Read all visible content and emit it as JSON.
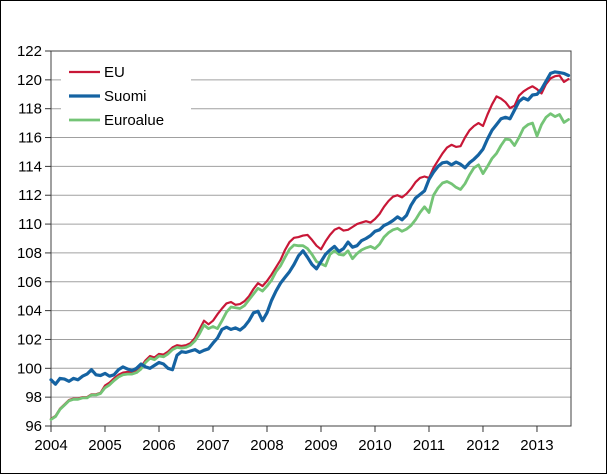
{
  "figure": {
    "background": "#ffffff",
    "border_color": "#000000",
    "gridline_color": "#a0a0a0",
    "frame_color": "#404040",
    "tick_color": "#333333"
  },
  "legend": {
    "position": "top-left-inside",
    "items": [
      {
        "label": "EU"
      },
      {
        "label": "Suomi"
      },
      {
        "label": "Euroalue"
      }
    ]
  },
  "chart_data": {
    "type": "line",
    "title": "",
    "xlabel": "",
    "ylabel": "",
    "x_unit": "month",
    "x_start_year": 2004,
    "x_tick_labels": [
      "2004",
      "2005",
      "2006",
      "2007",
      "2008",
      "2009",
      "2010",
      "2011",
      "2012",
      "2013"
    ],
    "y_ticks": [
      96,
      98,
      100,
      102,
      104,
      106,
      108,
      110,
      112,
      114,
      116,
      118,
      120,
      122
    ],
    "ylim": [
      96,
      122
    ],
    "grid": "horizontal",
    "legend_position": "upper left",
    "series": [
      {
        "name": "EU",
        "color": "#c81737",
        "width": 2.2,
        "values": [
          96.5,
          96.7,
          97.2,
          97.5,
          97.8,
          97.9,
          97.9,
          98.0,
          98.0,
          98.2,
          98.2,
          98.3,
          98.8,
          99.0,
          99.3,
          99.55,
          99.7,
          99.75,
          99.75,
          99.85,
          100.1,
          100.55,
          100.85,
          100.75,
          101.0,
          100.95,
          101.15,
          101.45,
          101.6,
          101.55,
          101.6,
          101.75,
          102.1,
          102.7,
          103.3,
          103.05,
          103.3,
          103.75,
          104.15,
          104.5,
          104.6,
          104.4,
          104.45,
          104.65,
          105.0,
          105.5,
          105.9,
          105.7,
          106.05,
          106.5,
          107.0,
          107.5,
          108.2,
          108.75,
          109.05,
          109.1,
          109.2,
          109.25,
          108.9,
          108.5,
          108.25,
          108.8,
          109.25,
          109.6,
          109.75,
          109.55,
          109.6,
          109.8,
          110.0,
          110.1,
          110.2,
          110.1,
          110.35,
          110.7,
          111.2,
          111.6,
          111.9,
          112.0,
          111.85,
          112.1,
          112.45,
          112.9,
          113.2,
          113.3,
          113.2,
          113.9,
          114.4,
          114.9,
          115.3,
          115.5,
          115.35,
          115.4,
          116.0,
          116.5,
          116.8,
          117.0,
          116.8,
          117.6,
          118.3,
          118.85,
          118.7,
          118.45,
          118.05,
          118.2,
          118.9,
          119.2,
          119.4,
          119.55,
          119.35,
          119.05,
          119.7,
          120.1,
          120.25,
          120.3,
          119.85,
          120.05
        ]
      },
      {
        "name": "Suomi",
        "color": "#1563a2",
        "width": 3.2,
        "values": [
          99.2,
          98.9,
          99.3,
          99.25,
          99.1,
          99.3,
          99.2,
          99.45,
          99.6,
          99.9,
          99.55,
          99.5,
          99.65,
          99.45,
          99.55,
          99.9,
          100.1,
          99.95,
          99.85,
          100.0,
          100.3,
          100.1,
          100.0,
          100.2,
          100.4,
          100.3,
          100.0,
          99.9,
          100.9,
          101.15,
          101.1,
          101.2,
          101.3,
          101.1,
          101.25,
          101.35,
          101.75,
          102.1,
          102.7,
          102.85,
          102.7,
          102.8,
          102.65,
          102.9,
          103.3,
          103.85,
          103.95,
          103.3,
          103.85,
          104.7,
          105.35,
          105.9,
          106.3,
          106.7,
          107.2,
          107.8,
          108.15,
          107.7,
          107.2,
          106.9,
          107.4,
          107.9,
          108.2,
          108.45,
          108.1,
          108.3,
          108.75,
          108.4,
          108.5,
          108.85,
          109.0,
          109.2,
          109.5,
          109.6,
          109.9,
          110.05,
          110.25,
          110.5,
          110.3,
          110.6,
          111.3,
          111.8,
          112.05,
          112.3,
          113.1,
          113.6,
          114.0,
          114.25,
          114.3,
          114.1,
          114.3,
          114.15,
          113.9,
          114.25,
          114.5,
          114.8,
          115.2,
          115.9,
          116.5,
          116.9,
          117.3,
          117.4,
          117.3,
          117.9,
          118.5,
          118.75,
          118.6,
          118.95,
          119.0,
          119.35,
          119.9,
          120.45,
          120.55,
          120.5,
          120.45,
          120.3
        ]
      },
      {
        "name": "Euroalue",
        "color": "#74c476",
        "width": 2.8,
        "values": [
          96.45,
          96.65,
          97.15,
          97.45,
          97.75,
          97.85,
          97.85,
          97.95,
          97.95,
          98.15,
          98.15,
          98.25,
          98.65,
          98.85,
          99.15,
          99.4,
          99.55,
          99.6,
          99.6,
          99.7,
          99.95,
          100.4,
          100.7,
          100.6,
          100.85,
          100.8,
          101.0,
          101.3,
          101.45,
          101.4,
          101.45,
          101.6,
          101.9,
          102.4,
          103.0,
          102.75,
          102.9,
          102.75,
          103.3,
          103.9,
          104.25,
          104.2,
          104.15,
          104.35,
          104.75,
          105.15,
          105.55,
          105.35,
          105.7,
          106.1,
          106.7,
          107.1,
          107.7,
          108.25,
          108.55,
          108.5,
          108.5,
          108.3,
          107.9,
          107.4,
          107.25,
          107.1,
          107.9,
          108.15,
          107.9,
          107.85,
          108.15,
          107.6,
          107.95,
          108.2,
          108.35,
          108.45,
          108.3,
          108.6,
          109.1,
          109.4,
          109.6,
          109.7,
          109.5,
          109.65,
          109.9,
          110.3,
          110.8,
          111.2,
          110.8,
          112.0,
          112.5,
          112.85,
          112.95,
          112.8,
          112.55,
          112.4,
          112.8,
          113.4,
          113.9,
          114.1,
          113.5,
          114.0,
          114.55,
          114.9,
          115.45,
          115.9,
          115.85,
          115.45,
          116.0,
          116.65,
          116.9,
          117.0,
          116.1,
          116.9,
          117.4,
          117.65,
          117.45,
          117.6,
          117.05,
          117.25
        ]
      }
    ]
  }
}
